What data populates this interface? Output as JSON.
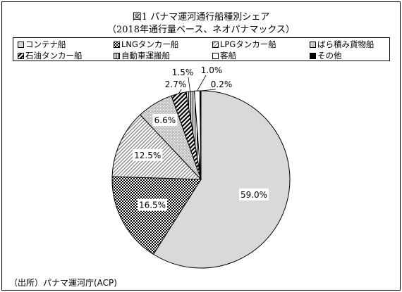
{
  "chart_data": {
    "type": "pie",
    "title": "図1 パナマ運河通行船種別シェア",
    "subtitle": "（2018年通行量ベース、ネオパナマックス）",
    "legend_position": "top",
    "slices": [
      {
        "label": "コンテナ船",
        "value": 59.0,
        "value_label": "59.0%",
        "pattern": "lightgray"
      },
      {
        "label": "LNGタンカー船",
        "value": 16.5,
        "value_label": "16.5%",
        "pattern": "checker"
      },
      {
        "label": "LPGタンカー船",
        "value": 12.5,
        "value_label": "12.5%",
        "pattern": "diagonal"
      },
      {
        "label": "ばら積み貨物船",
        "value": 6.6,
        "value_label": "6.6%",
        "pattern": "dotted"
      },
      {
        "label": "石油タンカー船",
        "value": 2.7,
        "value_label": "2.7%",
        "pattern": "wide-diagonal"
      },
      {
        "label": "自動車運搬船",
        "value": 1.5,
        "value_label": "1.5%",
        "pattern": "vertical"
      },
      {
        "label": "客船",
        "value": 1.0,
        "value_label": "1.0%",
        "pattern": "white"
      },
      {
        "label": "その他",
        "value": 0.2,
        "value_label": "0.2%",
        "pattern": "black"
      }
    ]
  },
  "source": "（出所）パナマ運河庁(ACP)"
}
